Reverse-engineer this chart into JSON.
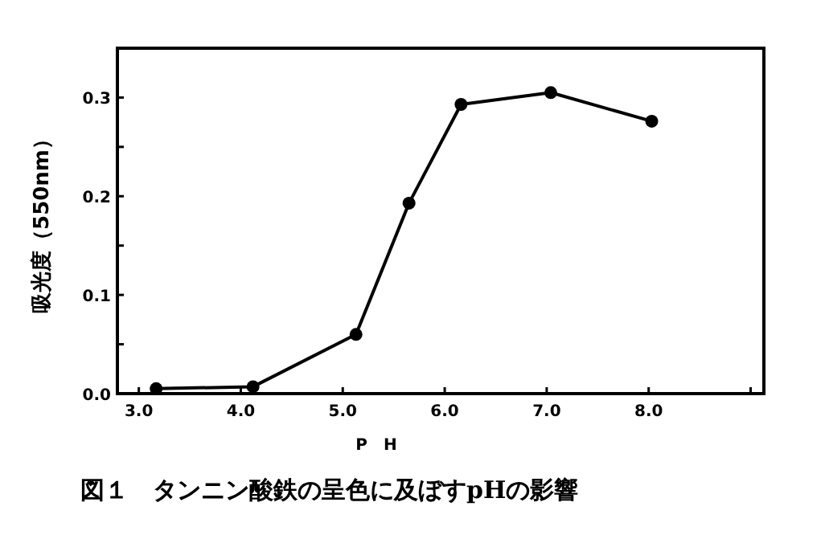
{
  "chart_data": {
    "type": "line",
    "title": "図１　タンニン酸鉄の呈色に及ぼすpHの影響",
    "xlabel": "P　H",
    "ylabel": "吸光度（550nm）",
    "x": [
      3.17,
      4.12,
      5.13,
      5.65,
      6.16,
      7.04,
      8.03
    ],
    "series": [
      {
        "color": "#000000",
        "values": [
          0.005,
          0.007,
          0.06,
          0.193,
          0.293,
          0.305,
          0.276
        ]
      }
    ],
    "xlim": [
      2.79,
      9.13
    ],
    "ylim": [
      0,
      0.35
    ],
    "xticks": [
      {
        "value": 3,
        "label": "3.0"
      },
      {
        "value": 4,
        "label": "4.0"
      },
      {
        "value": 5,
        "label": "5.0"
      },
      {
        "value": 6,
        "label": "6.0"
      },
      {
        "value": 7,
        "label": "7.0"
      },
      {
        "value": 8,
        "label": "8.0"
      },
      {
        "value": 9,
        "label": null
      }
    ],
    "yticks": [
      {
        "value": 0,
        "label": "0.0"
      },
      {
        "value": 0.05,
        "label": null
      },
      {
        "value": 0.1,
        "label": "0.1"
      },
      {
        "value": 0.15,
        "label": null
      },
      {
        "value": 0.2,
        "label": "0.2"
      },
      {
        "value": 0.25,
        "label": null
      },
      {
        "value": 0.3,
        "label": "0.3"
      }
    ],
    "marker": "circle",
    "line_style": "solid",
    "grid": false
  }
}
